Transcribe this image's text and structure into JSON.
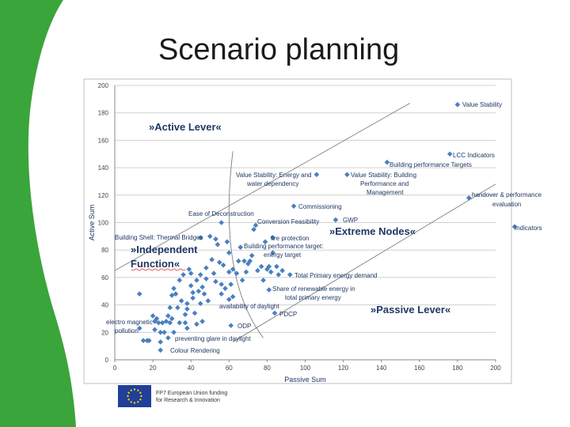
{
  "slide": {
    "title": "Scenario planning"
  },
  "colors": {
    "accent_green": "#3aa53a",
    "marker_blue": "#4a7fc1",
    "label_navy": "#1f3864",
    "eu_blue": "#1f3f99",
    "eu_star": "#ffcc00"
  },
  "icons": {
    "logo": "eu-flag-icon"
  },
  "funding": {
    "line1": "FP7 European Union funding",
    "line2": "for Research & Innovation"
  },
  "chart_data": {
    "type": "scatter",
    "xlabel": "Passive Sum",
    "ylabel": "Active Sum",
    "xlim": [
      0,
      200
    ],
    "ylim": [
      0,
      200
    ],
    "x_ticks": [
      0,
      20,
      40,
      60,
      80,
      100,
      120,
      140,
      160,
      180,
      200
    ],
    "y_ticks": [
      0,
      20,
      40,
      60,
      80,
      100,
      120,
      140,
      160,
      180,
      200
    ],
    "grid": "horizontal",
    "region_labels": [
      "»Active Lever«",
      "»Independent Function«",
      "»Extreme Nodes«",
      "»Passive Lever«"
    ],
    "labeled_points": [
      {
        "label": "Value Stability",
        "x": 180,
        "y": 186
      },
      {
        "label": "LCC Indicators",
        "x": 176,
        "y": 150
      },
      {
        "label": "Building performance Targets",
        "x": 143,
        "y": 144
      },
      {
        "label": "Value Stability: Energy and water dependency",
        "x": 106,
        "y": 135
      },
      {
        "label": "Value Stability: Building Performance and Management",
        "x": 122,
        "y": 135
      },
      {
        "label": "handover & performance evaluation",
        "x": 186,
        "y": 118
      },
      {
        "label": "Commissioning",
        "x": 94,
        "y": 112
      },
      {
        "label": "Indicators",
        "x": 210,
        "y": 97
      },
      {
        "label": "Ease of Deconstruction",
        "x": 56,
        "y": 100
      },
      {
        "label": "Conversion Feasibility",
        "x": 74,
        "y": 98
      },
      {
        "label": "GWP",
        "x": 116,
        "y": 102
      },
      {
        "label": "Building Shell: Thermal Bridges",
        "x": 45,
        "y": 89
      },
      {
        "label": "fire protection",
        "x": 83,
        "y": 89
      },
      {
        "label": "Building performance target: energy target",
        "x": 83,
        "y": 78
      },
      {
        "label": "Total Primary energy demand",
        "x": 92,
        "y": 62
      },
      {
        "label": "Share of renewable energy in total primary energy",
        "x": 81,
        "y": 51
      },
      {
        "label": "availability of daylight",
        "x": 60,
        "y": 44
      },
      {
        "label": "PDCP",
        "x": 84,
        "y": 34
      },
      {
        "label": "electro magnetic pollution",
        "x": 13,
        "y": 23
      },
      {
        "label": "ODP",
        "x": 61,
        "y": 25
      },
      {
        "label": "preventing glare in daylight",
        "x": 28,
        "y": 16
      },
      {
        "label": "Colour Rendering",
        "x": 24,
        "y": 7
      }
    ],
    "unlabeled_points": [
      [
        13,
        48
      ],
      [
        15,
        14
      ],
      [
        17,
        14
      ],
      [
        18,
        14
      ],
      [
        20,
        32
      ],
      [
        21,
        28
      ],
      [
        21,
        22
      ],
      [
        22,
        30
      ],
      [
        23,
        27
      ],
      [
        24,
        13
      ],
      [
        24,
        20
      ],
      [
        25,
        27
      ],
      [
        26,
        20
      ],
      [
        27,
        28
      ],
      [
        28,
        32
      ],
      [
        29,
        27
      ],
      [
        29,
        38
      ],
      [
        30,
        30
      ],
      [
        30,
        47
      ],
      [
        31,
        52
      ],
      [
        31,
        20
      ],
      [
        32,
        48
      ],
      [
        33,
        38
      ],
      [
        34,
        27
      ],
      [
        34,
        58
      ],
      [
        35,
        43
      ],
      [
        36,
        62
      ],
      [
        37,
        27
      ],
      [
        37,
        33
      ],
      [
        38,
        41
      ],
      [
        38,
        37
      ],
      [
        38,
        23
      ],
      [
        39,
        66
      ],
      [
        40,
        63
      ],
      [
        40,
        54
      ],
      [
        41,
        49
      ],
      [
        41,
        45
      ],
      [
        42,
        34
      ],
      [
        43,
        26
      ],
      [
        43,
        58
      ],
      [
        44,
        50
      ],
      [
        45,
        62
      ],
      [
        45,
        41
      ],
      [
        46,
        28
      ],
      [
        46,
        53
      ],
      [
        47,
        48
      ],
      [
        48,
        59
      ],
      [
        48,
        67
      ],
      [
        49,
        43
      ],
      [
        50,
        90
      ],
      [
        51,
        73
      ],
      [
        52,
        63
      ],
      [
        53,
        57
      ],
      [
        53,
        88
      ],
      [
        54,
        84
      ],
      [
        55,
        71
      ],
      [
        56,
        55
      ],
      [
        56,
        48
      ],
      [
        57,
        69
      ],
      [
        58,
        52
      ],
      [
        59,
        86
      ],
      [
        60,
        64
      ],
      [
        60,
        78
      ],
      [
        61,
        55
      ],
      [
        62,
        66
      ],
      [
        62,
        46
      ],
      [
        64,
        63
      ],
      [
        65,
        72
      ],
      [
        66,
        82
      ],
      [
        67,
        58
      ],
      [
        68,
        72
      ],
      [
        69,
        64
      ],
      [
        70,
        70
      ],
      [
        71,
        72
      ],
      [
        72,
        76
      ],
      [
        73,
        95
      ],
      [
        75,
        65
      ],
      [
        77,
        68
      ],
      [
        78,
        58
      ],
      [
        79,
        86
      ],
      [
        80,
        66
      ],
      [
        81,
        68
      ],
      [
        82,
        64
      ],
      [
        85,
        68
      ],
      [
        86,
        62
      ],
      [
        88,
        65
      ]
    ],
    "boundary_lines": [
      {
        "from": [
          0,
          65
        ],
        "to": [
          155,
          187
        ]
      },
      {
        "from": [
          62,
          13
        ],
        "to": [
          200,
          128
        ]
      }
    ],
    "curve": {
      "from": [
        62,
        152
      ],
      "via": [
        54,
        60
      ],
      "to": [
        78,
        16
      ]
    }
  }
}
